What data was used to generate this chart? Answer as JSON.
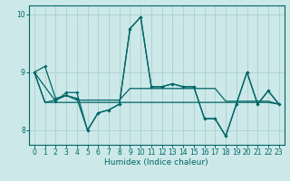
{
  "xlabel": "Humidex (Indice chaleur)",
  "bg_color": "#cce8e8",
  "grid_color": "#aacfcf",
  "line_color": "#006666",
  "xlim": [
    -0.5,
    23.5
  ],
  "ylim": [
    7.75,
    10.15
  ],
  "yticks": [
    8,
    9,
    10
  ],
  "xticks": [
    0,
    1,
    2,
    3,
    4,
    5,
    6,
    7,
    8,
    9,
    10,
    11,
    12,
    13,
    14,
    15,
    16,
    17,
    18,
    19,
    20,
    21,
    22,
    23
  ],
  "line1_x": [
    0,
    1,
    2,
    3,
    4,
    5,
    6,
    7,
    8,
    9,
    10,
    11,
    12,
    13,
    14,
    15,
    16,
    17,
    18,
    19,
    20,
    21,
    22,
    23
  ],
  "line1_y": [
    9.0,
    9.1,
    8.55,
    8.6,
    8.55,
    8.0,
    8.3,
    8.35,
    8.45,
    9.75,
    9.95,
    8.75,
    8.75,
    8.8,
    8.75,
    8.75,
    8.2,
    8.2,
    7.9,
    8.45,
    9.0,
    8.45,
    8.68,
    8.45
  ],
  "line2_x": [
    0,
    1,
    2,
    3,
    4,
    5,
    6,
    7,
    8,
    9,
    10,
    11,
    12,
    13,
    14,
    15,
    16,
    17,
    18,
    19,
    20,
    21,
    22,
    23
  ],
  "line2_y": [
    9.0,
    8.48,
    8.48,
    8.48,
    8.48,
    8.48,
    8.48,
    8.48,
    8.48,
    8.48,
    8.48,
    8.48,
    8.48,
    8.48,
    8.48,
    8.48,
    8.48,
    8.48,
    8.48,
    8.48,
    8.48,
    8.48,
    8.48,
    8.45
  ],
  "line3_x": [
    0,
    1,
    2,
    3,
    4,
    5,
    6,
    7,
    8,
    9,
    10,
    11,
    12,
    13,
    14,
    15,
    16,
    17,
    18,
    19,
    20,
    21,
    22,
    23
  ],
  "line3_y": [
    9.0,
    8.48,
    8.52,
    8.6,
    8.52,
    8.52,
    8.52,
    8.52,
    8.52,
    8.72,
    8.72,
    8.72,
    8.72,
    8.72,
    8.72,
    8.72,
    8.72,
    8.72,
    8.5,
    8.5,
    8.5,
    8.5,
    8.5,
    8.45
  ],
  "line4_x": [
    0,
    2,
    3,
    4,
    5,
    6,
    7,
    8,
    9,
    10,
    11,
    12,
    13,
    14,
    15,
    16,
    17,
    18,
    19,
    20,
    21,
    22,
    23
  ],
  "line4_y": [
    9.0,
    8.5,
    8.65,
    8.65,
    8.0,
    8.3,
    8.35,
    8.45,
    9.75,
    9.95,
    8.75,
    8.75,
    8.8,
    8.75,
    8.75,
    8.2,
    8.2,
    7.9,
    8.45,
    9.0,
    8.45,
    8.68,
    8.45
  ]
}
